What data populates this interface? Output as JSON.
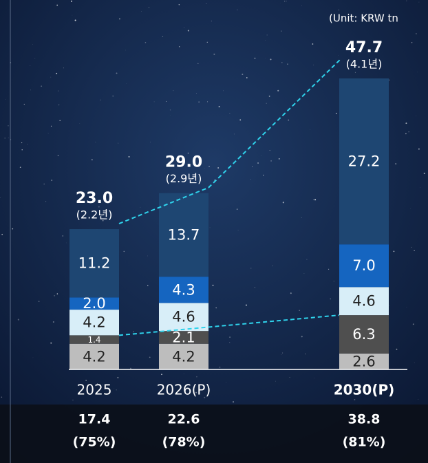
{
  "chart_data": {
    "type": "stacked_bar",
    "unit": "(Unit: KRW tn",
    "categories": [
      "2025",
      "2026(P)",
      "2030(P)"
    ],
    "series": [
      {
        "color": "#bdbdbd",
        "values": [
          4.2,
          4.2,
          2.6
        ]
      },
      {
        "color": "#4f4f4f",
        "values": [
          1.4,
          2.1,
          6.3
        ]
      },
      {
        "color": "#d8eef8",
        "values": [
          4.2,
          4.6,
          4.6
        ]
      },
      {
        "color": "#1565c0",
        "values": [
          2.0,
          4.3,
          7.0
        ],
        "value_labels": [
          "2.0",
          "4.3",
          "7.0"
        ]
      },
      {
        "color": "#1e4672",
        "values": [
          11.2,
          13.7,
          27.2
        ]
      }
    ],
    "totals": {
      "values": [
        23.0,
        29.0,
        47.7
      ],
      "value_labels": [
        "23.0",
        "29.0",
        "47.7"
      ]
    },
    "total_notes": [
      "(2.2년)",
      "(2.9년)",
      "(4.1년)"
    ],
    "bottom_row": [
      {
        "value": "17.4",
        "share": "(75%)"
      },
      {
        "value": "22.6",
        "share": "(78%)"
      },
      {
        "value": "38.8",
        "share": "(81%)"
      }
    ]
  }
}
